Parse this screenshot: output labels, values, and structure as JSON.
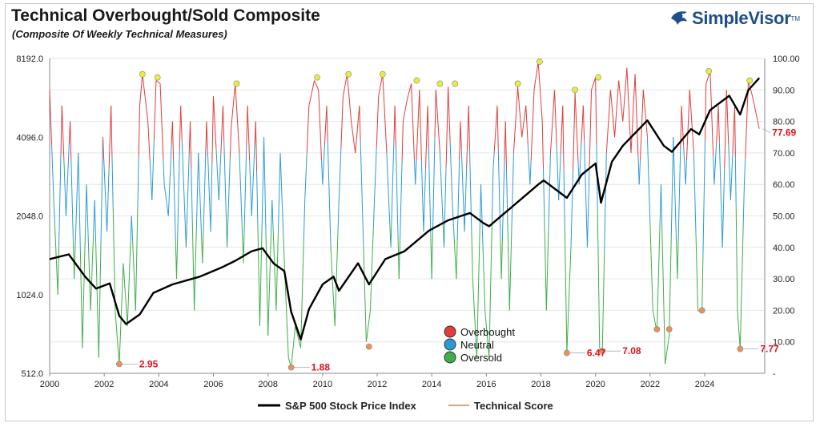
{
  "header": {
    "title": "Technical Overbought/Sold Composite",
    "subtitle": "(Composite Of Weekly Technical Measures)"
  },
  "brand": {
    "name": "SimpleVisor",
    "tm": "TM"
  },
  "colors": {
    "overbought": "#e03c3c",
    "neutral": "#2b9bd6",
    "oversold": "#3fae49",
    "price": "#000000",
    "marker_low": "#e8925a",
    "marker_high": "#e6ee3c",
    "annotation": "#e0121b"
  },
  "chart_data": {
    "type": "line",
    "x_range": [
      2000,
      2026.2
    ],
    "x_ticks": [
      "2000",
      "2002",
      "2004",
      "2006",
      "2008",
      "2010",
      "2012",
      "2014",
      "2016",
      "2018",
      "2020",
      "2022",
      "2024"
    ],
    "y_left": {
      "scale": "log2",
      "range": [
        512,
        8192
      ],
      "ticks": [
        "512.0",
        "1024.0",
        "2048.0",
        "4096.0",
        "8192.0"
      ]
    },
    "y_right": {
      "range": [
        0,
        100
      ],
      "ticks": [
        "-",
        "10.00",
        "20.00",
        "30.00",
        "40.00",
        "50.00",
        "60.00",
        "70.00",
        "80.00",
        "90.00",
        "100.00"
      ]
    },
    "series": [
      {
        "name": "S&P 500 Stock Price Index",
        "axis": "left",
        "points": [
          [
            2000.0,
            1400
          ],
          [
            2000.7,
            1460
          ],
          [
            2001.3,
            1200
          ],
          [
            2001.7,
            1080
          ],
          [
            2002.2,
            1130
          ],
          [
            2002.55,
            850
          ],
          [
            2002.8,
            790
          ],
          [
            2003.3,
            860
          ],
          [
            2003.8,
            1040
          ],
          [
            2004.5,
            1120
          ],
          [
            2005.5,
            1200
          ],
          [
            2006.3,
            1300
          ],
          [
            2006.8,
            1380
          ],
          [
            2007.4,
            1500
          ],
          [
            2007.8,
            1540
          ],
          [
            2008.2,
            1350
          ],
          [
            2008.6,
            1260
          ],
          [
            2008.85,
            880
          ],
          [
            2009.2,
            690
          ],
          [
            2009.5,
            900
          ],
          [
            2010.0,
            1120
          ],
          [
            2010.4,
            1200
          ],
          [
            2010.6,
            1060
          ],
          [
            2011.3,
            1350
          ],
          [
            2011.7,
            1120
          ],
          [
            2012.3,
            1400
          ],
          [
            2013.0,
            1500
          ],
          [
            2013.9,
            1800
          ],
          [
            2014.6,
            1970
          ],
          [
            2015.4,
            2100
          ],
          [
            2015.9,
            1920
          ],
          [
            2016.1,
            1870
          ],
          [
            2016.9,
            2200
          ],
          [
            2017.9,
            2700
          ],
          [
            2018.1,
            2800
          ],
          [
            2018.95,
            2400
          ],
          [
            2019.5,
            2950
          ],
          [
            2020.0,
            3250
          ],
          [
            2020.2,
            2300
          ],
          [
            2020.6,
            3300
          ],
          [
            2021.0,
            3800
          ],
          [
            2021.9,
            4750
          ],
          [
            2022.5,
            3800
          ],
          [
            2022.8,
            3600
          ],
          [
            2023.5,
            4400
          ],
          [
            2023.8,
            4200
          ],
          [
            2024.2,
            5200
          ],
          [
            2024.9,
            5900
          ],
          [
            2025.3,
            5000
          ],
          [
            2025.6,
            6200
          ],
          [
            2026.0,
            6900
          ]
        ]
      },
      {
        "name": "Technical Score",
        "axis": "right",
        "points": [
          [
            2000.0,
            90
          ],
          [
            2000.15,
            55
          ],
          [
            2000.3,
            25
          ],
          [
            2000.45,
            85
          ],
          [
            2000.6,
            50
          ],
          [
            2000.75,
            80
          ],
          [
            2000.9,
            30
          ],
          [
            2001.05,
            70
          ],
          [
            2001.2,
            8
          ],
          [
            2001.35,
            60
          ],
          [
            2001.5,
            20
          ],
          [
            2001.65,
            55
          ],
          [
            2001.8,
            5
          ],
          [
            2001.95,
            75
          ],
          [
            2002.1,
            45
          ],
          [
            2002.25,
            85
          ],
          [
            2002.4,
            20
          ],
          [
            2002.55,
            2.95
          ],
          [
            2002.7,
            35
          ],
          [
            2002.85,
            15
          ],
          [
            2003.0,
            50
          ],
          [
            2003.15,
            20
          ],
          [
            2003.3,
            85
          ],
          [
            2003.4,
            95
          ],
          [
            2003.6,
            80
          ],
          [
            2003.75,
            55
          ],
          [
            2003.9,
            93
          ],
          [
            2004.05,
            92
          ],
          [
            2004.2,
            60
          ],
          [
            2004.35,
            50
          ],
          [
            2004.5,
            80
          ],
          [
            2004.65,
            30
          ],
          [
            2004.8,
            85
          ],
          [
            2005.0,
            40
          ],
          [
            2005.15,
            80
          ],
          [
            2005.3,
            20
          ],
          [
            2005.45,
            70
          ],
          [
            2005.6,
            35
          ],
          [
            2005.75,
            80
          ],
          [
            2005.9,
            45
          ],
          [
            2006.0,
            88
          ],
          [
            2006.2,
            55
          ],
          [
            2006.35,
            85
          ],
          [
            2006.5,
            40
          ],
          [
            2006.65,
            78
          ],
          [
            2006.8,
            92
          ],
          [
            2006.95,
            70
          ],
          [
            2007.1,
            35
          ],
          [
            2007.25,
            85
          ],
          [
            2007.4,
            50
          ],
          [
            2007.55,
            80
          ],
          [
            2007.7,
            15
          ],
          [
            2007.85,
            75
          ],
          [
            2008.0,
            12
          ],
          [
            2008.15,
            55
          ],
          [
            2008.3,
            20
          ],
          [
            2008.45,
            70
          ],
          [
            2008.6,
            35
          ],
          [
            2008.75,
            5
          ],
          [
            2008.85,
            1.88
          ],
          [
            2009.0,
            15
          ],
          [
            2009.2,
            8
          ],
          [
            2009.35,
            55
          ],
          [
            2009.5,
            85
          ],
          [
            2009.7,
            93
          ],
          [
            2009.85,
            90
          ],
          [
            2010.0,
            60
          ],
          [
            2010.15,
            85
          ],
          [
            2010.3,
            40
          ],
          [
            2010.45,
            15
          ],
          [
            2010.6,
            55
          ],
          [
            2010.75,
            88
          ],
          [
            2010.9,
            95
          ],
          [
            2011.05,
            80
          ],
          [
            2011.2,
            70
          ],
          [
            2011.35,
            85
          ],
          [
            2011.5,
            40
          ],
          [
            2011.6,
            10
          ],
          [
            2011.75,
            20
          ],
          [
            2011.9,
            55
          ],
          [
            2012.05,
            88
          ],
          [
            2012.2,
            95
          ],
          [
            2012.35,
            70
          ],
          [
            2012.5,
            40
          ],
          [
            2012.65,
            85
          ],
          [
            2012.8,
            30
          ],
          [
            2012.95,
            80
          ],
          [
            2013.1,
            87
          ],
          [
            2013.25,
            92
          ],
          [
            2013.4,
            60
          ],
          [
            2013.55,
            90
          ],
          [
            2013.7,
            45
          ],
          [
            2013.85,
            85
          ],
          [
            2014.0,
            30
          ],
          [
            2014.15,
            90
          ],
          [
            2014.3,
            70
          ],
          [
            2014.45,
            40
          ],
          [
            2014.6,
            91
          ],
          [
            2014.75,
            55
          ],
          [
            2014.9,
            30
          ],
          [
            2015.05,
            80
          ],
          [
            2015.2,
            45
          ],
          [
            2015.35,
            85
          ],
          [
            2015.5,
            30
          ],
          [
            2015.65,
            5
          ],
          [
            2015.8,
            60
          ],
          [
            2015.95,
            20
          ],
          [
            2016.1,
            5
          ],
          [
            2016.25,
            65
          ],
          [
            2016.4,
            85
          ],
          [
            2016.55,
            30
          ],
          [
            2016.7,
            80
          ],
          [
            2016.85,
            20
          ],
          [
            2017.0,
            70
          ],
          [
            2017.15,
            91
          ],
          [
            2017.3,
            75
          ],
          [
            2017.45,
            85
          ],
          [
            2017.6,
            60
          ],
          [
            2017.75,
            90
          ],
          [
            2017.9,
            99
          ],
          [
            2018.05,
            80
          ],
          [
            2018.2,
            20
          ],
          [
            2018.35,
            70
          ],
          [
            2018.5,
            90
          ],
          [
            2018.65,
            55
          ],
          [
            2018.8,
            85
          ],
          [
            2018.95,
            6.47
          ],
          [
            2019.1,
            40
          ],
          [
            2019.25,
            89
          ],
          [
            2019.4,
            60
          ],
          [
            2019.55,
            85
          ],
          [
            2019.7,
            40
          ],
          [
            2019.85,
            90
          ],
          [
            2020.0,
            94
          ],
          [
            2020.15,
            8
          ],
          [
            2020.25,
            7.08
          ],
          [
            2020.4,
            70
          ],
          [
            2020.55,
            90
          ],
          [
            2020.7,
            75
          ],
          [
            2020.85,
            93
          ],
          [
            2021.0,
            80
          ],
          [
            2021.15,
            97
          ],
          [
            2021.3,
            70
          ],
          [
            2021.45,
            95
          ],
          [
            2021.6,
            60
          ],
          [
            2021.75,
            90
          ],
          [
            2021.9,
            75
          ],
          [
            2022.1,
            20
          ],
          [
            2022.25,
            13
          ],
          [
            2022.4,
            60
          ],
          [
            2022.55,
            3
          ],
          [
            2022.7,
            12
          ],
          [
            2022.85,
            75
          ],
          [
            2023.0,
            30
          ],
          [
            2023.15,
            85
          ],
          [
            2023.3,
            60
          ],
          [
            2023.45,
            90
          ],
          [
            2023.6,
            70
          ],
          [
            2023.75,
            20
          ],
          [
            2023.9,
            19
          ],
          [
            2024.05,
            92
          ],
          [
            2024.2,
            96
          ],
          [
            2024.35,
            60
          ],
          [
            2024.5,
            85
          ],
          [
            2024.65,
            40
          ],
          [
            2024.8,
            90
          ],
          [
            2024.95,
            55
          ],
          [
            2025.1,
            85
          ],
          [
            2025.2,
            20
          ],
          [
            2025.3,
            7.77
          ],
          [
            2025.45,
            60
          ],
          [
            2025.6,
            93
          ],
          [
            2025.75,
            88
          ],
          [
            2026.0,
            77.69
          ]
        ]
      }
    ],
    "low_markers": [
      [
        2002.55,
        2.95
      ],
      [
        2008.85,
        1.88
      ],
      [
        2011.7,
        8.5
      ],
      [
        2018.95,
        6.47
      ],
      [
        2020.25,
        7.08
      ],
      [
        2022.25,
        14
      ],
      [
        2022.7,
        14
      ],
      [
        2023.9,
        20
      ],
      [
        2025.3,
        7.77
      ]
    ],
    "high_markers": [
      [
        2003.4,
        95
      ],
      [
        2003.95,
        94
      ],
      [
        2006.85,
        92
      ],
      [
        2009.8,
        94
      ],
      [
        2010.95,
        95
      ],
      [
        2012.2,
        95
      ],
      [
        2013.45,
        93
      ],
      [
        2014.3,
        92
      ],
      [
        2014.85,
        92
      ],
      [
        2017.15,
        92
      ],
      [
        2017.95,
        99
      ],
      [
        2019.25,
        90
      ],
      [
        2020.1,
        94
      ],
      [
        2024.15,
        96
      ],
      [
        2025.65,
        93
      ]
    ],
    "annotations": [
      {
        "x": 2002.55,
        "y": 2.95,
        "text": "2.95"
      },
      {
        "x": 2008.85,
        "y": 1.88,
        "text": "1.88"
      },
      {
        "x": 2018.95,
        "y": 6.47,
        "text": "6.47"
      },
      {
        "x": 2020.25,
        "y": 7.08,
        "text": "7.08"
      },
      {
        "x": 2025.3,
        "y": 7.77,
        "text": "7.77"
      },
      {
        "x": 2026.0,
        "y": 77.69,
        "text": "77.69"
      }
    ],
    "zone_legend": [
      "Overbought",
      "Neutral",
      "Oversold"
    ],
    "bottom_legend": [
      "S&P 500 Stock Price Index",
      "Technical Score"
    ],
    "grid": "horizontal"
  }
}
